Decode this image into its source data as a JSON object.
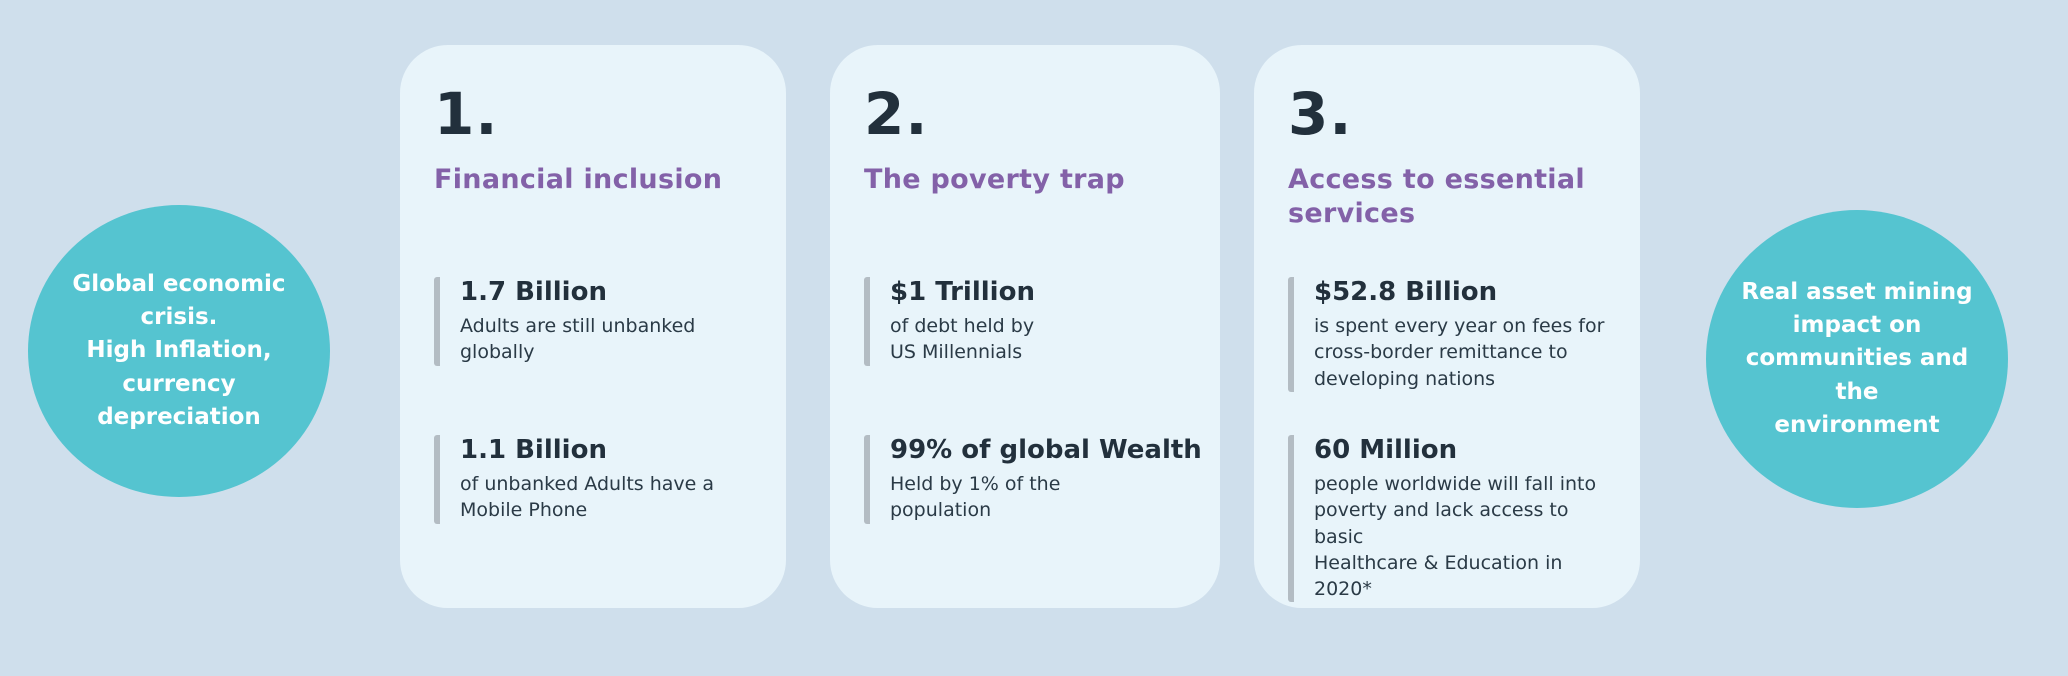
{
  "palette": {
    "background": "#cfdfec",
    "card_background": "#e8f4fa",
    "circle_teal": "#55c4d0",
    "heading_purple": "#8361a8",
    "text_dark": "#22303c",
    "stat_bar_gray": "#b3bcc3",
    "circle_text": "#ffffff"
  },
  "left_circle": {
    "text": "Global economic\ncrisis.\nHigh Inflation,\ncurrency\ndepreciation"
  },
  "right_circle": {
    "text": "Real asset  mining\nimpact on\ncommunities and the\nenvironment"
  },
  "cards": [
    {
      "number": "1.",
      "title": "Financial inclusion",
      "stats": [
        {
          "value": "1.7 Billion",
          "description": "Adults are still unbanked\nglobally"
        },
        {
          "value": "1.1 Billion",
          "description": "of unbanked Adults have a\nMobile Phone"
        }
      ]
    },
    {
      "number": "2.",
      "title": "The poverty trap",
      "stats": [
        {
          "value": "$1 Trillion",
          "description": "of debt held by\nUS Millennials"
        },
        {
          "value": "99% of global Wealth",
          "description": "Held by 1% of the\npopulation"
        }
      ]
    },
    {
      "number": "3.",
      "title": "Access to essential\nservices",
      "stats": [
        {
          "value": "$52.8 Billion",
          "description": "is spent every year on fees for\ncross-border remittance to\ndeveloping nations"
        },
        {
          "value": "60 Million",
          "description": "people worldwide will fall into\npoverty and lack access to basic\nHealthcare & Education in 2020*"
        }
      ]
    }
  ]
}
